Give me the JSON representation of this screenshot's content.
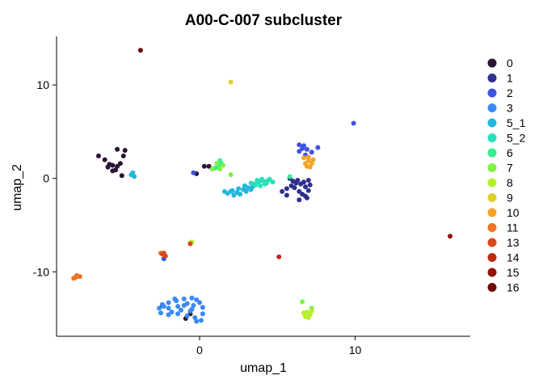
{
  "chart_data": {
    "type": "scatter",
    "title": "A00-C-007 subcluster",
    "xlabel": "umap_1",
    "ylabel": "umap_2",
    "xlim": [
      -9.2,
      17.4
    ],
    "ylim": [
      -16.9,
      15.2
    ],
    "xticks": [
      0,
      10
    ],
    "xtick_labels": [
      "0",
      "10"
    ],
    "yticks": [
      10,
      0,
      -10
    ],
    "ytick_labels": [
      "10",
      "0",
      "-10"
    ],
    "grid": false,
    "legend_position": "right",
    "series": [
      {
        "name": "0",
        "color": "#2a1433",
        "points": [
          [
            -6.5,
            2.4
          ],
          [
            -6.1,
            2.0
          ],
          [
            -5.8,
            1.5
          ],
          [
            -5.6,
            1.4
          ],
          [
            -5.9,
            1.2
          ],
          [
            -5.3,
            1.3
          ],
          [
            -5.1,
            1.6
          ],
          [
            -4.8,
            3.0
          ],
          [
            -5.3,
            3.1
          ],
          [
            -4.9,
            2.4
          ],
          [
            -5.4,
            0.9
          ],
          [
            -5.0,
            0.3
          ],
          [
            -5.6,
            0.8
          ],
          [
            0.3,
            1.3
          ],
          [
            0.6,
            1.3
          ],
          [
            -0.2,
            0.5
          ],
          [
            -2.4,
            -13.6
          ],
          [
            -0.9,
            -15.0
          ],
          [
            -0.6,
            -14.5
          ]
        ]
      },
      {
        "name": "1",
        "color": "#2f2f8f",
        "points": [
          [
            5.8,
            0.0
          ],
          [
            6.0,
            -0.3
          ],
          [
            6.2,
            -0.5
          ],
          [
            6.5,
            -0.6
          ],
          [
            6.8,
            -0.9
          ],
          [
            7.0,
            -1.3
          ],
          [
            6.6,
            -1.7
          ],
          [
            6.4,
            -1.4
          ],
          [
            6.1,
            -1.0
          ],
          [
            5.6,
            -1.1
          ],
          [
            5.3,
            -1.4
          ],
          [
            5.6,
            -1.8
          ],
          [
            6.9,
            -2.1
          ],
          [
            6.4,
            -2.3
          ],
          [
            7.1,
            -0.7
          ],
          [
            6.7,
            -0.4
          ],
          [
            6.3,
            -0.2
          ],
          [
            5.9,
            -0.8
          ],
          [
            6.8,
            -1.9
          ],
          [
            7.0,
            -0.2
          ]
        ]
      },
      {
        "name": "2",
        "color": "#3d52e0",
        "points": [
          [
            6.4,
            3.6
          ],
          [
            6.6,
            3.2
          ],
          [
            6.7,
            3.5
          ],
          [
            6.9,
            3.1
          ],
          [
            7.2,
            2.8
          ],
          [
            6.8,
            2.5
          ],
          [
            6.4,
            2.9
          ],
          [
            7.6,
            3.3
          ],
          [
            9.9,
            5.9
          ],
          [
            -0.4,
            0.6
          ],
          [
            -2.3,
            -8.6
          ]
        ]
      },
      {
        "name": "3",
        "color": "#3a8af2",
        "points": [
          [
            -0.2,
            -13.0
          ],
          [
            -0.5,
            -12.8
          ],
          [
            -1.0,
            -12.9
          ],
          [
            -1.5,
            -13.1
          ],
          [
            -2.0,
            -13.3
          ],
          [
            -2.4,
            -13.5
          ],
          [
            -2.6,
            -13.9
          ],
          [
            -2.5,
            -14.4
          ],
          [
            -2.0,
            -14.6
          ],
          [
            -1.4,
            -14.5
          ],
          [
            -0.8,
            -14.7
          ],
          [
            -0.3,
            -14.9
          ],
          [
            0.1,
            -15.2
          ],
          [
            0.2,
            -14.5
          ],
          [
            0.2,
            -13.8
          ],
          [
            0.0,
            -13.3
          ],
          [
            -0.8,
            -13.4
          ],
          [
            -1.4,
            -13.7
          ],
          [
            -2.0,
            -13.9
          ],
          [
            -1.2,
            -14.1
          ],
          [
            -0.5,
            -14.0
          ],
          [
            -0.4,
            -13.6
          ],
          [
            -1.8,
            -14.3
          ],
          [
            -2.3,
            -13.7
          ],
          [
            -0.2,
            -15.3
          ],
          [
            -0.6,
            -14.2
          ],
          [
            -1.6,
            -12.9
          ],
          [
            -1.0,
            -13.6
          ]
        ]
      },
      {
        "name": "5_1",
        "color": "#22b8dc",
        "points": [
          [
            1.8,
            -1.6
          ],
          [
            2.1,
            -1.3
          ],
          [
            2.4,
            -1.5
          ],
          [
            2.8,
            -1.2
          ],
          [
            3.1,
            -1.0
          ],
          [
            3.4,
            -0.9
          ],
          [
            2.6,
            -1.7
          ],
          [
            2.2,
            -1.8
          ],
          [
            2.0,
            -1.4
          ],
          [
            3.0,
            -1.4
          ],
          [
            1.6,
            -1.4
          ],
          [
            2.9,
            -0.8
          ],
          [
            3.3,
            -1.2
          ],
          [
            2.5,
            -1.1
          ],
          [
            -4.4,
            0.4
          ],
          [
            -4.2,
            0.2
          ],
          [
            -4.3,
            0.6
          ]
        ]
      },
      {
        "name": "5_2",
        "color": "#2ae0b8",
        "points": [
          [
            3.5,
            -0.6
          ],
          [
            3.8,
            -0.4
          ],
          [
            4.1,
            -0.3
          ],
          [
            4.4,
            -0.2
          ],
          [
            4.7,
            -0.4
          ],
          [
            4.2,
            -0.6
          ],
          [
            3.9,
            -0.8
          ],
          [
            3.6,
            -0.7
          ],
          [
            3.3,
            -0.5
          ],
          [
            4.5,
            -0.1
          ],
          [
            4.0,
            -0.1
          ],
          [
            3.7,
            -0.2
          ],
          [
            4.3,
            -0.5
          ]
        ]
      },
      {
        "name": "6",
        "color": "#36f08e",
        "points": [
          [
            1.2,
            1.3
          ],
          [
            1.4,
            1.6
          ],
          [
            1.0,
            1.1
          ],
          [
            1.3,
            1.9
          ],
          [
            5.8,
            0.2
          ]
        ]
      },
      {
        "name": "7",
        "color": "#7ff244",
        "points": [
          [
            1.1,
            1.6
          ],
          [
            1.5,
            1.4
          ],
          [
            0.8,
            1.0
          ],
          [
            1.3,
            1.0
          ],
          [
            2.0,
            0.4
          ],
          [
            6.6,
            -13.2
          ],
          [
            7.2,
            -13.9
          ]
        ]
      },
      {
        "name": "8",
        "color": "#b4f02a",
        "points": [
          [
            6.9,
            -14.3
          ],
          [
            7.1,
            -14.6
          ],
          [
            7.0,
            -14.9
          ],
          [
            6.7,
            -14.4
          ],
          [
            7.2,
            -14.2
          ],
          [
            6.8,
            -14.8
          ],
          [
            -0.6,
            -6.9
          ],
          [
            -0.5,
            -6.8
          ]
        ]
      },
      {
        "name": "9",
        "color": "#dcd22a",
        "points": [
          [
            2.0,
            10.3
          ]
        ]
      },
      {
        "name": "10",
        "color": "#f5a42a",
        "points": [
          [
            6.8,
            1.6
          ],
          [
            7.0,
            1.9
          ],
          [
            7.2,
            1.6
          ],
          [
            6.9,
            1.3
          ],
          [
            7.3,
            2.0
          ],
          [
            7.1,
            1.2
          ],
          [
            6.7,
            2.2
          ],
          [
            7.0,
            2.3
          ]
        ]
      },
      {
        "name": "11",
        "color": "#ed7424",
        "points": [
          [
            -8.0,
            -10.6
          ],
          [
            -7.8,
            -10.5
          ],
          [
            -7.9,
            -10.4
          ],
          [
            -7.7,
            -10.5
          ],
          [
            -8.1,
            -10.7
          ],
          [
            -2.5,
            -8.0
          ],
          [
            -2.3,
            -8.2
          ]
        ]
      },
      {
        "name": "13",
        "color": "#d8481a",
        "points": [
          [
            -2.4,
            -8.1
          ],
          [
            -2.2,
            -8.3
          ],
          [
            -2.3,
            -8.0
          ],
          [
            -0.6,
            -7.0
          ]
        ]
      },
      {
        "name": "14",
        "color": "#c02a0f",
        "points": [
          [
            5.1,
            -8.4
          ]
        ]
      },
      {
        "name": "15",
        "color": "#901208",
        "points": [
          [
            16.1,
            -6.2
          ]
        ]
      },
      {
        "name": "16",
        "color": "#6b0a06",
        "points": [
          [
            -3.8,
            13.7
          ]
        ]
      }
    ]
  }
}
